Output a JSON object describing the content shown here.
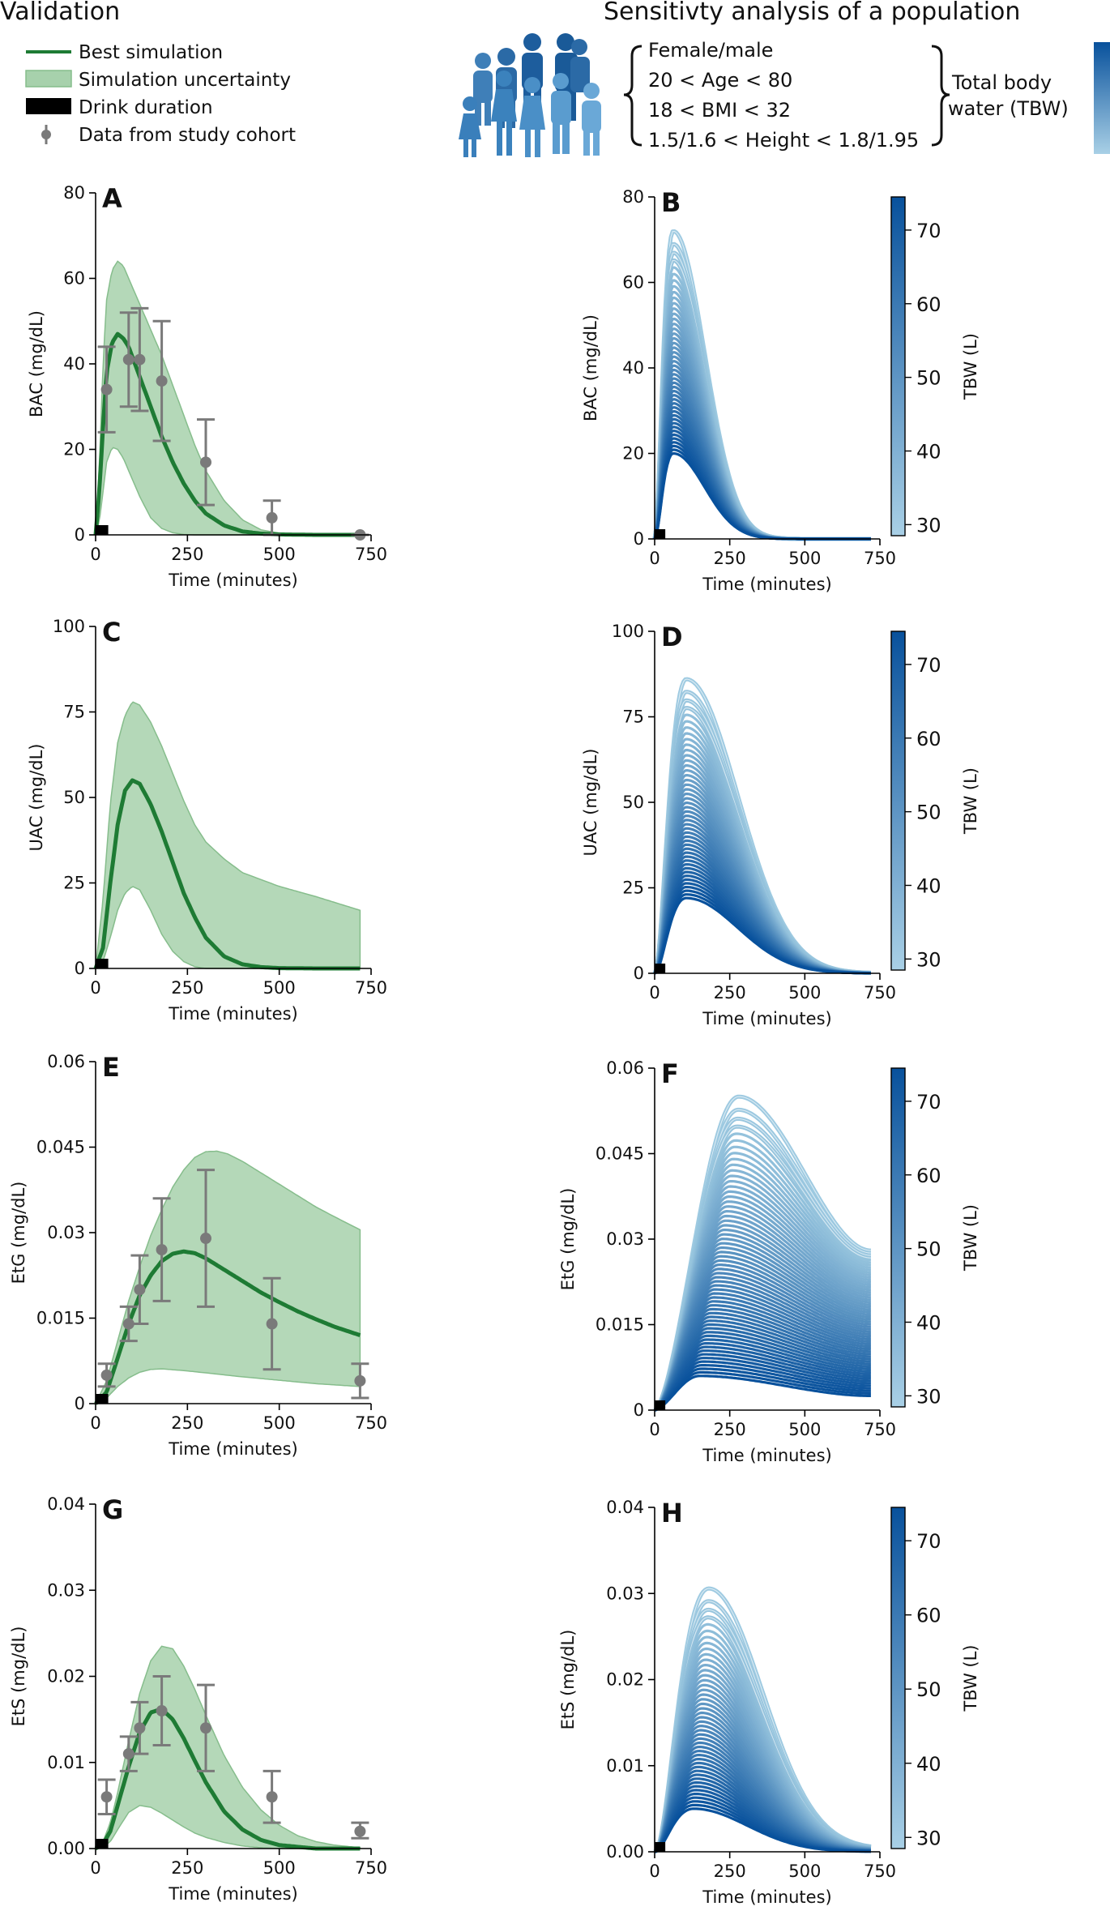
{
  "header": {
    "left_title": "Validation",
    "right_title": "Sensitivty analysis of a population",
    "criteria": [
      "Female/male",
      "20 < Age < 80",
      "18 < BMI < 32",
      "1.5/1.6 < Height < 1.8/1.95"
    ],
    "tbw_line1": "Total body",
    "tbw_line2": "water (TBW)"
  },
  "legend": {
    "best": "Best simulation",
    "uncertainty": "Simulation uncertainty",
    "drink": "Drink duration",
    "data": "Data from study cohort"
  },
  "colors": {
    "best": "#1e7b34",
    "band": "#a7d1ac",
    "band_edge": "#86bd8c",
    "data": "#7a7a7a",
    "light_blue": "#9ecae1",
    "dark_blue": "#08519c"
  },
  "colorbar": {
    "label": "TBW (L)",
    "ticks": [
      30,
      40,
      50,
      60,
      70
    ],
    "range": [
      28.5,
      74.5
    ]
  },
  "chart_data": [
    {
      "panel": "A",
      "type": "line",
      "title": "",
      "xlabel": "Time (minutes)",
      "ylabel": "BAC (mg/dL)",
      "xlim": [
        0,
        750
      ],
      "ylim": [
        0,
        80
      ],
      "xticks": [
        0,
        250,
        500,
        750
      ],
      "yticks": [
        0,
        20,
        40,
        60,
        80
      ],
      "drink": [
        0,
        30
      ],
      "best": {
        "x": [
          0,
          10,
          20,
          30,
          45,
          60,
          75,
          90,
          120,
          150,
          180,
          210,
          240,
          270,
          300,
          350,
          400,
          450,
          500,
          600,
          720
        ],
        "y": [
          0,
          10,
          25,
          38,
          45,
          47,
          46,
          44,
          37,
          30,
          23,
          17,
          12,
          8,
          5,
          2.2,
          0.8,
          0.3,
          0.1,
          0,
          0
        ]
      },
      "upper": {
        "x": [
          0,
          10,
          20,
          30,
          45,
          60,
          75,
          90,
          120,
          150,
          180,
          210,
          240,
          270,
          300,
          350,
          400,
          450,
          500,
          600,
          720
        ],
        "y": [
          0,
          15,
          40,
          55,
          62,
          64,
          63,
          60,
          54,
          48,
          42,
          35,
          28,
          21,
          15,
          8,
          3.5,
          1.2,
          0.4,
          0.1,
          0
        ]
      },
      "lower": {
        "x": [
          0,
          10,
          20,
          30,
          45,
          60,
          75,
          90,
          120,
          150,
          180,
          210,
          240,
          270,
          300,
          350,
          400,
          450,
          500,
          600,
          720
        ],
        "y": [
          0,
          3,
          10,
          17,
          20.5,
          20,
          18,
          15,
          9,
          4,
          1.5,
          0.5,
          0.1,
          0,
          0,
          0,
          0,
          0,
          0,
          0,
          0
        ]
      },
      "data": [
        {
          "x": 30,
          "y": 34,
          "lo": 24,
          "hi": 44
        },
        {
          "x": 90,
          "y": 41,
          "lo": 30,
          "hi": 52
        },
        {
          "x": 120,
          "y": 41,
          "lo": 29,
          "hi": 53
        },
        {
          "x": 180,
          "y": 36,
          "lo": 22,
          "hi": 50
        },
        {
          "x": 300,
          "y": 17,
          "lo": 7,
          "hi": 27
        },
        {
          "x": 480,
          "y": 4,
          "lo": 0,
          "hi": 8
        },
        {
          "x": 720,
          "y": 0,
          "lo": 0,
          "hi": 0
        }
      ]
    },
    {
      "panel": "B",
      "type": "line",
      "title": "",
      "xlabel": "Time (minutes)",
      "ylabel": "BAC (mg/dL)",
      "xlim": [
        0,
        750
      ],
      "ylim": [
        0,
        80
      ],
      "xticks": [
        0,
        250,
        500,
        750
      ],
      "yticks": [
        0,
        20,
        40,
        60,
        80
      ],
      "drink": [
        0,
        30
      ],
      "family": {
        "model": "gamma",
        "tmax": [
          62,
          62
        ],
        "tail_time": 140,
        "peak_range": [
          20,
          72
        ],
        "end_range": [
          0,
          0
        ],
        "count": 46,
        "highlight_peaks": [
          72,
          68,
          66,
          64
        ]
      }
    },
    {
      "panel": "C",
      "type": "line",
      "title": "",
      "xlabel": "Time (minutes)",
      "ylabel": "UAC (mg/dL)",
      "xlim": [
        0,
        750
      ],
      "ylim": [
        0,
        100
      ],
      "xticks": [
        0,
        250,
        500,
        750
      ],
      "yticks": [
        0,
        25,
        50,
        75,
        100
      ],
      "drink": [
        0,
        30
      ],
      "best": {
        "x": [
          0,
          20,
          40,
          60,
          80,
          100,
          120,
          150,
          180,
          210,
          240,
          270,
          300,
          350,
          400,
          450,
          500,
          600,
          720
        ],
        "y": [
          0,
          6,
          25,
          42,
          52,
          55,
          54,
          48,
          40,
          31,
          22,
          15,
          9,
          3.5,
          1.2,
          0.4,
          0.1,
          0,
          0
        ]
      },
      "upper": {
        "x": [
          0,
          20,
          40,
          60,
          80,
          100,
          120,
          150,
          180,
          210,
          240,
          270,
          300,
          350,
          400,
          450,
          500,
          600,
          720
        ],
        "y": [
          0,
          20,
          48,
          66,
          74,
          78,
          77,
          72,
          65,
          57,
          49,
          42,
          37,
          32,
          28,
          26,
          24,
          21,
          17
        ]
      },
      "lower": {
        "x": [
          0,
          20,
          40,
          60,
          80,
          100,
          120,
          150,
          180,
          210,
          240,
          270,
          300,
          350,
          400,
          450,
          500,
          600,
          720
        ],
        "y": [
          0,
          2,
          9,
          17,
          22,
          24,
          23,
          17,
          10,
          5,
          2,
          0.5,
          0,
          0,
          0,
          0,
          0,
          0,
          0
        ]
      }
    },
    {
      "panel": "D",
      "type": "line",
      "title": "",
      "xlabel": "Time (minutes)",
      "ylabel": "UAC (mg/dL)",
      "xlim": [
        0,
        750
      ],
      "ylim": [
        0,
        100
      ],
      "xticks": [
        0,
        250,
        500,
        750
      ],
      "yticks": [
        0,
        25,
        50,
        75,
        100
      ],
      "drink": [
        0,
        30
      ],
      "family": {
        "model": "gamma",
        "tmax": [
          105,
          105
        ],
        "tail_time": 230,
        "peak_range": [
          22,
          86
        ],
        "end_range": [
          0,
          0
        ],
        "count": 46,
        "highlight_peaks": [
          86,
          80,
          76,
          73
        ]
      }
    },
    {
      "panel": "E",
      "type": "line",
      "title": "",
      "xlabel": "Time (minutes)",
      "ylabel": "EtG (mg/dL)",
      "xlim": [
        0,
        750
      ],
      "ylim": [
        0,
        0.06
      ],
      "xticks": [
        0,
        250,
        500,
        750
      ],
      "yticks": [
        0.0,
        0.015,
        0.03,
        0.045,
        0.06
      ],
      "drink": [
        0,
        30
      ],
      "best": {
        "x": [
          0,
          30,
          60,
          90,
          120,
          150,
          180,
          210,
          240,
          270,
          300,
          350,
          400,
          450,
          500,
          550,
          600,
          650,
          720
        ],
        "y": [
          0,
          0.002,
          0.008,
          0.014,
          0.019,
          0.0225,
          0.025,
          0.0263,
          0.0267,
          0.0264,
          0.0255,
          0.0235,
          0.0215,
          0.0195,
          0.0178,
          0.0162,
          0.0148,
          0.0135,
          0.012
        ]
      },
      "upper": {
        "x": [
          0,
          30,
          60,
          90,
          120,
          150,
          180,
          210,
          240,
          270,
          300,
          330,
          360,
          400,
          450,
          500,
          550,
          600,
          650,
          720
        ],
        "y": [
          0,
          0.004,
          0.011,
          0.018,
          0.024,
          0.0295,
          0.034,
          0.038,
          0.041,
          0.0432,
          0.0442,
          0.0443,
          0.0438,
          0.0425,
          0.0405,
          0.0385,
          0.0365,
          0.0345,
          0.0328,
          0.0305
        ]
      },
      "lower": {
        "x": [
          0,
          30,
          60,
          90,
          120,
          150,
          180,
          240,
          300,
          400,
          500,
          600,
          720
        ],
        "y": [
          0,
          0.001,
          0.003,
          0.0045,
          0.0055,
          0.006,
          0.0061,
          0.0058,
          0.0054,
          0.0047,
          0.0041,
          0.0035,
          0.003
        ]
      },
      "data": [
        {
          "x": 30,
          "y": 0.005,
          "lo": 0.003,
          "hi": 0.007
        },
        {
          "x": 90,
          "y": 0.014,
          "lo": 0.011,
          "hi": 0.017
        },
        {
          "x": 120,
          "y": 0.02,
          "lo": 0.014,
          "hi": 0.026
        },
        {
          "x": 180,
          "y": 0.027,
          "lo": 0.018,
          "hi": 0.036
        },
        {
          "x": 300,
          "y": 0.029,
          "lo": 0.017,
          "hi": 0.041
        },
        {
          "x": 480,
          "y": 0.014,
          "lo": 0.006,
          "hi": 0.022
        },
        {
          "x": 720,
          "y": 0.004,
          "lo": 0.001,
          "hi": 0.007
        }
      ]
    },
    {
      "panel": "F",
      "type": "line",
      "title": "",
      "xlabel": "Time (minutes)",
      "ylabel": "EtG (mg/dL)",
      "xlim": [
        0,
        750
      ],
      "ylim": [
        0,
        0.06
      ],
      "xticks": [
        0,
        250,
        500,
        750
      ],
      "yticks": [
        0.0,
        0.015,
        0.03,
        0.045,
        0.06
      ],
      "drink": [
        0,
        30
      ],
      "family": {
        "model": "rise-decay",
        "tmax": [
          150,
          280
        ],
        "tail_time": 0,
        "peak_range": [
          0.006,
          0.055
        ],
        "end_range": [
          0.0025,
          0.028
        ],
        "count": 60,
        "highlight_peaks": [
          0.055,
          0.049,
          0.044,
          0.04
        ]
      }
    },
    {
      "panel": "G",
      "type": "line",
      "title": "",
      "xlabel": "Time (minutes)",
      "ylabel": "EtS (mg/dL)",
      "xlim": [
        0,
        750
      ],
      "ylim": [
        0,
        0.04
      ],
      "xticks": [
        0,
        250,
        500,
        750
      ],
      "yticks": [
        0.0,
        0.01,
        0.02,
        0.03,
        0.04
      ],
      "drink": [
        0,
        30
      ],
      "best": {
        "x": [
          0,
          20,
          40,
          60,
          90,
          120,
          150,
          180,
          210,
          240,
          270,
          300,
          350,
          400,
          450,
          500,
          550,
          600,
          720
        ],
        "y": [
          0,
          0.0005,
          0.002,
          0.005,
          0.0095,
          0.0135,
          0.0158,
          0.0162,
          0.015,
          0.0128,
          0.0102,
          0.0077,
          0.0043,
          0.0022,
          0.001,
          0.0004,
          0.0002,
          0,
          0
        ]
      },
      "upper": {
        "x": [
          0,
          20,
          40,
          60,
          90,
          120,
          150,
          180,
          210,
          240,
          270,
          300,
          350,
          400,
          450,
          500,
          550,
          600,
          650,
          720
        ],
        "y": [
          0,
          0.0008,
          0.003,
          0.0065,
          0.0125,
          0.018,
          0.0218,
          0.0235,
          0.0232,
          0.0212,
          0.0185,
          0.0155,
          0.0108,
          0.0071,
          0.0045,
          0.0027,
          0.0015,
          0.0008,
          0.0004,
          0.0001
        ]
      },
      "lower": {
        "x": [
          0,
          20,
          40,
          60,
          90,
          120,
          150,
          180,
          210,
          240,
          270,
          300,
          350,
          400,
          450,
          500,
          600,
          720
        ],
        "y": [
          0,
          0.0002,
          0.0008,
          0.0022,
          0.0042,
          0.005,
          0.0048,
          0.0041,
          0.0033,
          0.0025,
          0.0018,
          0.0013,
          0.0007,
          0.0003,
          0.0001,
          0,
          0,
          0
        ]
      },
      "data": [
        {
          "x": 30,
          "y": 0.006,
          "lo": 0.004,
          "hi": 0.008
        },
        {
          "x": 90,
          "y": 0.011,
          "lo": 0.009,
          "hi": 0.013
        },
        {
          "x": 120,
          "y": 0.014,
          "lo": 0.011,
          "hi": 0.017
        },
        {
          "x": 180,
          "y": 0.016,
          "lo": 0.012,
          "hi": 0.02
        },
        {
          "x": 300,
          "y": 0.014,
          "lo": 0.009,
          "hi": 0.019
        },
        {
          "x": 480,
          "y": 0.006,
          "lo": 0.003,
          "hi": 0.009
        },
        {
          "x": 720,
          "y": 0.002,
          "lo": 0.0012,
          "hi": 0.003
        }
      ]
    },
    {
      "panel": "H",
      "type": "line",
      "title": "",
      "xlabel": "Time (minutes)",
      "ylabel": "EtS (mg/dL)",
      "xlim": [
        0,
        750
      ],
      "ylim": [
        0,
        0.04
      ],
      "xticks": [
        0,
        250,
        500,
        750
      ],
      "yticks": [
        0.0,
        0.01,
        0.02,
        0.03,
        0.04
      ],
      "drink": [
        0,
        30
      ],
      "family": {
        "model": "gamma",
        "tmax": [
          130,
          180
        ],
        "tail_time": 240,
        "peak_range": [
          0.005,
          0.0305
        ],
        "end_range": [
          0,
          0.0003
        ],
        "count": 46,
        "highlight_peaks": [
          0.0305,
          0.029,
          0.0278,
          0.0265
        ]
      }
    }
  ]
}
